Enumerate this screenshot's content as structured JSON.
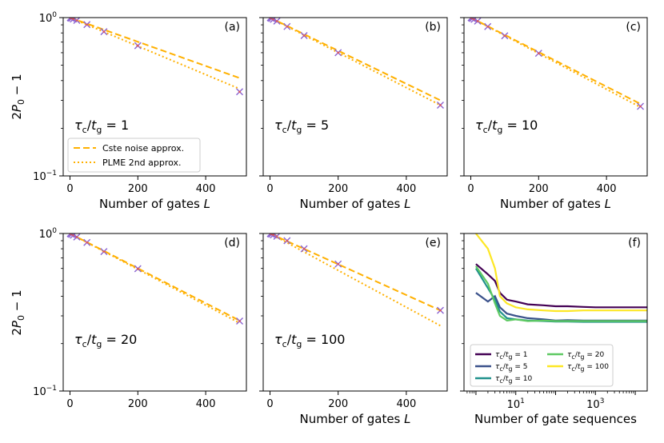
{
  "figure": {
    "ylabel_rows": [
      "2P_0 − 1",
      "2P_0 − 1"
    ],
    "legend_main": [
      {
        "label": "Cste noise approx.",
        "style": "dashed",
        "color": "#ffb000"
      },
      {
        "label": "PLME 2nd approx.",
        "style": "dotted",
        "color": "#ffb000"
      }
    ]
  },
  "chart_data": [
    {
      "type": "line",
      "panel": "(a)",
      "tau_ratio": "1",
      "annotation": "τc/tg = 1",
      "xlabel": "Number of gates L",
      "ylabel": "2P0 − 1",
      "xlim": [
        -20,
        520
      ],
      "ylim": [
        0.1,
        1.0
      ],
      "yscale": "log",
      "xticks": [
        0,
        200,
        400
      ],
      "yticks": [
        "10^-1",
        "10^0"
      ],
      "markers": {
        "x": [
          1,
          2,
          5,
          10,
          20,
          50,
          100,
          200,
          500
        ],
        "y": [
          0.998,
          0.996,
          0.99,
          0.98,
          0.96,
          0.903,
          0.815,
          0.665,
          0.34
        ]
      },
      "series": [
        {
          "name": "Cste noise approx.",
          "style": "dashed",
          "x": [
            0,
            500
          ],
          "y": [
            1.0,
            0.415
          ]
        },
        {
          "name": "PLME 2nd approx.",
          "style": "dotted",
          "x": [
            0,
            500
          ],
          "y": [
            1.0,
            0.355
          ]
        }
      ]
    },
    {
      "type": "line",
      "panel": "(b)",
      "tau_ratio": "5",
      "annotation": "τc/tg = 5",
      "xlabel": "Number of gates L",
      "ylabel": "",
      "xlim": [
        -20,
        520
      ],
      "ylim": [
        0.1,
        1.0
      ],
      "yscale": "log",
      "xticks": [
        0,
        200,
        400
      ],
      "yticks": [],
      "markers": {
        "x": [
          1,
          2,
          5,
          10,
          20,
          50,
          100,
          200,
          500
        ],
        "y": [
          0.998,
          0.995,
          0.987,
          0.975,
          0.95,
          0.878,
          0.77,
          0.6,
          0.28
        ]
      },
      "series": [
        {
          "name": "Cste noise approx.",
          "style": "dashed",
          "x": [
            0,
            500
          ],
          "y": [
            1.0,
            0.3
          ]
        },
        {
          "name": "PLME 2nd approx.",
          "style": "dotted",
          "x": [
            0,
            500
          ],
          "y": [
            1.0,
            0.28
          ]
        }
      ]
    },
    {
      "type": "line",
      "panel": "(c)",
      "tau_ratio": "10",
      "annotation": "τc/tg = 10",
      "xlabel": "Number of gates L",
      "ylabel": "",
      "xlim": [
        -20,
        520
      ],
      "ylim": [
        0.1,
        1.0
      ],
      "yscale": "log",
      "xticks": [
        0,
        200,
        400
      ],
      "yticks": [],
      "markers": {
        "x": [
          1,
          2,
          5,
          10,
          20,
          50,
          100,
          200,
          500
        ],
        "y": [
          0.998,
          0.995,
          0.987,
          0.975,
          0.95,
          0.877,
          0.768,
          0.595,
          0.275
        ]
      },
      "series": [
        {
          "name": "Cste noise approx.",
          "style": "dashed",
          "x": [
            0,
            500
          ],
          "y": [
            1.0,
            0.285
          ]
        },
        {
          "name": "PLME 2nd approx.",
          "style": "dotted",
          "x": [
            0,
            500
          ],
          "y": [
            1.0,
            0.272
          ]
        }
      ]
    },
    {
      "type": "line",
      "panel": "(d)",
      "tau_ratio": "20",
      "annotation": "τc/tg = 20",
      "xlabel": "",
      "ylabel": "2P0 − 1",
      "xlim": [
        -20,
        520
      ],
      "ylim": [
        0.1,
        1.0
      ],
      "yscale": "log",
      "xticks": [
        0,
        200,
        400
      ],
      "yticks": [
        "10^-1",
        "10^0"
      ],
      "markers": {
        "x": [
          1,
          2,
          5,
          10,
          20,
          50,
          100,
          200,
          500
        ],
        "y": [
          0.998,
          0.995,
          0.987,
          0.975,
          0.95,
          0.877,
          0.768,
          0.598,
          0.278
        ]
      },
      "series": [
        {
          "name": "Cste noise approx.",
          "style": "dashed",
          "x": [
            0,
            500
          ],
          "y": [
            1.0,
            0.28
          ]
        },
        {
          "name": "PLME 2nd approx.",
          "style": "dotted",
          "x": [
            0,
            500
          ],
          "y": [
            1.0,
            0.27
          ]
        }
      ]
    },
    {
      "type": "line",
      "panel": "(e)",
      "tau_ratio": "100",
      "annotation": "τc/tg = 100",
      "xlabel": "Number of gates L",
      "ylabel": "",
      "xlim": [
        -20,
        520
      ],
      "ylim": [
        0.1,
        1.0
      ],
      "yscale": "log",
      "xticks": [
        0,
        200,
        400
      ],
      "yticks": [],
      "markers": {
        "x": [
          1,
          2,
          5,
          10,
          20,
          50,
          100,
          200,
          500
        ],
        "y": [
          0.998,
          0.996,
          0.99,
          0.98,
          0.96,
          0.9,
          0.8,
          0.64,
          0.325
        ]
      },
      "series": [
        {
          "name": "Cste noise approx.",
          "style": "dashed",
          "x": [
            0,
            500
          ],
          "y": [
            1.0,
            0.325
          ]
        },
        {
          "name": "PLME 2nd approx.",
          "style": "dotted",
          "x": [
            0,
            500
          ],
          "y": [
            1.0,
            0.26
          ]
        }
      ]
    },
    {
      "type": "line",
      "panel": "(f)",
      "xlabel": "Number of gate sequences",
      "ylabel": "",
      "xscale": "log",
      "xlim_log10": [
        -0.3,
        4.3
      ],
      "ylim": [
        0.1,
        1.0
      ],
      "yscale": "log",
      "xticks_log10": [
        1,
        3
      ],
      "xtick_labels": [
        "10^1",
        "10^3"
      ],
      "yticks": [],
      "series": [
        {
          "name": "τc/tg = 1",
          "color": "#440154",
          "x": [
            1,
            2,
            3,
            4,
            6,
            10,
            20,
            50,
            100,
            200,
            500,
            1000,
            2000,
            5000,
            10000,
            20000
          ],
          "y": [
            0.64,
            0.55,
            0.5,
            0.42,
            0.38,
            0.37,
            0.355,
            0.35,
            0.345,
            0.345,
            0.342,
            0.34,
            0.34,
            0.34,
            0.34,
            0.34
          ]
        },
        {
          "name": "τc/tg = 5",
          "color": "#3b528b",
          "x": [
            1,
            2,
            3,
            4,
            6,
            10,
            20,
            50,
            100,
            200,
            500,
            1000,
            2000,
            5000,
            10000,
            20000
          ],
          "y": [
            0.42,
            0.37,
            0.4,
            0.34,
            0.31,
            0.3,
            0.29,
            0.285,
            0.28,
            0.282,
            0.28,
            0.28,
            0.28,
            0.28,
            0.28,
            0.28
          ]
        },
        {
          "name": "τc/tg = 10",
          "color": "#21918c",
          "x": [
            1,
            2,
            3,
            4,
            6,
            10,
            20,
            50,
            100,
            200,
            500,
            1000,
            2000,
            5000,
            10000,
            20000
          ],
          "y": [
            0.6,
            0.45,
            0.38,
            0.32,
            0.29,
            0.285,
            0.28,
            0.278,
            0.276,
            0.276,
            0.275,
            0.275,
            0.275,
            0.275,
            0.275,
            0.275
          ]
        },
        {
          "name": "τc/tg = 20",
          "color": "#5ec962",
          "x": [
            1,
            2,
            3,
            4,
            6,
            10,
            20,
            50,
            100,
            200,
            500,
            1000,
            2000,
            5000,
            10000,
            20000
          ],
          "y": [
            0.62,
            0.48,
            0.36,
            0.3,
            0.28,
            0.285,
            0.278,
            0.28,
            0.278,
            0.278,
            0.278,
            0.278,
            0.278,
            0.278,
            0.278,
            0.278
          ]
        },
        {
          "name": "τc/tg = 100",
          "color": "#fde725",
          "x": [
            1,
            2,
            3,
            4,
            6,
            10,
            20,
            50,
            100,
            200,
            500,
            1000,
            2000,
            5000,
            10000,
            20000
          ],
          "y": [
            1.0,
            0.8,
            0.6,
            0.4,
            0.36,
            0.34,
            0.33,
            0.325,
            0.322,
            0.322,
            0.325,
            0.325,
            0.325,
            0.325,
            0.325,
            0.325
          ]
        }
      ]
    }
  ]
}
